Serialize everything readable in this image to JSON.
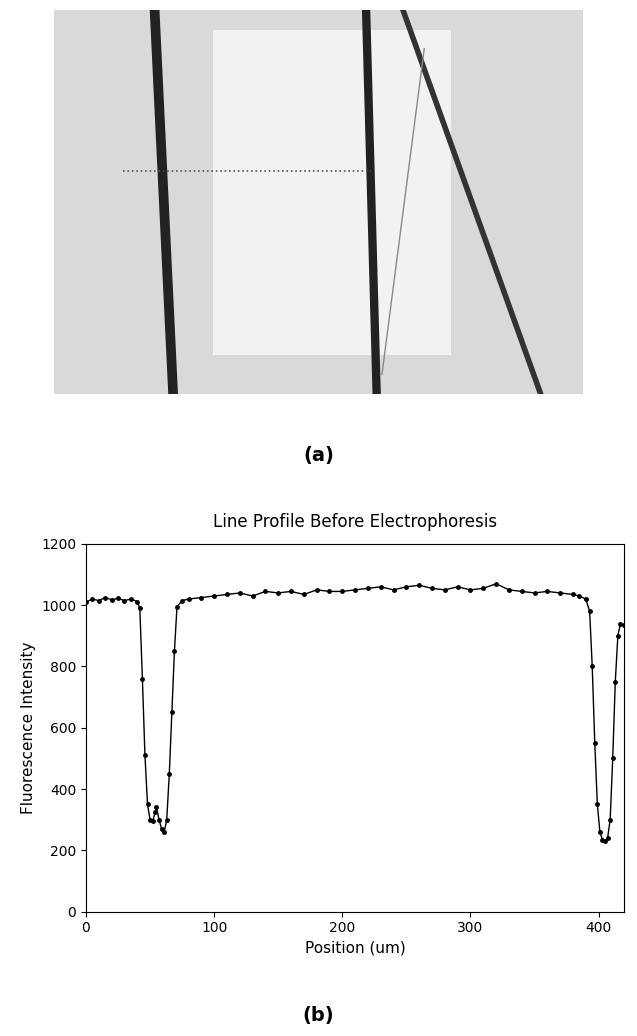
{
  "figure": {
    "panel_labels": [
      "(a)",
      "(b)"
    ]
  },
  "chart_data": {
    "type": "line",
    "title": "Line Profile Before Electrophoresis",
    "x_label": "Position (um)",
    "y_label": "Fluorescence Intensity",
    "x": [
      0,
      5,
      10,
      15,
      20,
      25,
      30,
      35,
      40,
      42,
      44,
      46,
      48,
      50,
      52,
      54,
      55,
      57,
      59,
      61,
      63,
      65,
      67,
      69,
      71,
      75,
      80,
      90,
      100,
      110,
      120,
      130,
      140,
      150,
      160,
      170,
      180,
      190,
      200,
      210,
      220,
      230,
      240,
      250,
      260,
      270,
      280,
      290,
      300,
      310,
      320,
      330,
      340,
      350,
      360,
      370,
      380,
      385,
      390,
      393,
      395,
      397,
      399,
      401,
      403,
      405,
      407,
      409,
      411,
      413,
      415,
      417,
      420
    ],
    "values": [
      1010,
      1020,
      1015,
      1025,
      1018,
      1022,
      1015,
      1020,
      1012,
      990,
      760,
      510,
      350,
      300,
      295,
      325,
      340,
      300,
      270,
      260,
      300,
      450,
      650,
      850,
      995,
      1015,
      1020,
      1025,
      1030,
      1035,
      1040,
      1030,
      1045,
      1040,
      1045,
      1035,
      1050,
      1045,
      1045,
      1050,
      1055,
      1060,
      1050,
      1060,
      1065,
      1055,
      1050,
      1060,
      1050,
      1055,
      1070,
      1050,
      1045,
      1040,
      1045,
      1040,
      1035,
      1030,
      1020,
      980,
      800,
      550,
      350,
      260,
      235,
      230,
      240,
      300,
      500,
      750,
      900,
      940,
      935
    ],
    "color": "#000000",
    "marker": "o",
    "line_style": "solid",
    "xlim": [
      0,
      420
    ],
    "ylim": [
      0,
      1200
    ],
    "xticks": [
      0,
      100,
      200,
      300,
      400
    ],
    "yticks": [
      0,
      200,
      400,
      600,
      800,
      1000,
      1200
    ],
    "grid": false
  }
}
